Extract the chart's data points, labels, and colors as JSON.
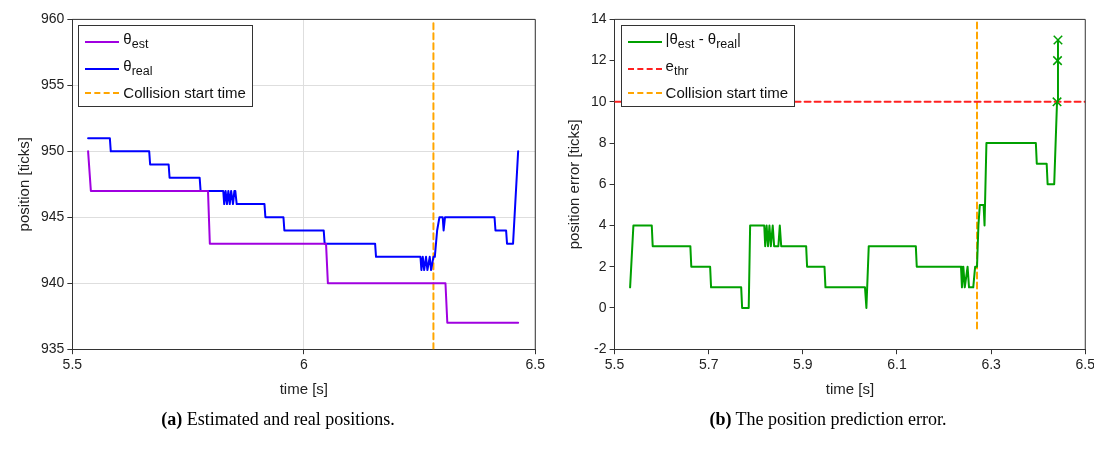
{
  "chart_data": [
    {
      "type": "line",
      "xlabel": "time [s]",
      "ylabel": "position [ticks]",
      "xlim": [
        5.5,
        6.5
      ],
      "xticks": [
        5.5,
        6,
        6.5
      ],
      "ylim": [
        935,
        960
      ],
      "yticks": [
        935,
        940,
        945,
        950,
        955,
        960
      ],
      "grid": true,
      "legend": "top left",
      "annotations": [
        "(a) Estimated and real positions."
      ],
      "series": [
        {
          "name": "θ$_{est}$",
          "color": "#a000e0",
          "x": [
            5.534,
            5.54,
            5.793,
            5.797,
            6.048,
            6.052,
            6.306,
            6.31,
            6.463
          ],
          "values": [
            950,
            947,
            947,
            943,
            943,
            940,
            940,
            937,
            937
          ]
        },
        {
          "name": "θ$_{real}$",
          "color": "#0000ff",
          "x": [
            5.534,
            5.581,
            5.583,
            5.666,
            5.668,
            5.708,
            5.71,
            5.775,
            5.777,
            5.826,
            5.828,
            5.831,
            5.834,
            5.837,
            5.84,
            5.843,
            5.847,
            5.85,
            5.852,
            5.855,
            5.915,
            5.917,
            5.956,
            5.958,
            6.043,
            6.045,
            6.154,
            6.156,
            6.252,
            6.254,
            6.257,
            6.26,
            6.264,
            6.267,
            6.272,
            6.275,
            6.28,
            6.283,
            6.288,
            6.293,
            6.3,
            6.302,
            6.305,
            6.412,
            6.414,
            6.437,
            6.439,
            6.452,
            6.463
          ],
          "values": [
            951,
            951,
            950,
            950,
            949,
            949,
            948,
            948,
            947,
            947,
            946,
            947,
            946,
            947,
            946,
            947,
            946,
            947,
            947,
            946,
            946,
            945,
            945,
            944,
            944,
            943,
            943,
            942,
            942,
            941,
            942,
            941,
            942,
            941,
            942,
            941,
            942,
            942,
            944,
            945,
            945,
            944,
            945,
            945,
            944,
            944,
            943,
            943,
            950
          ]
        },
        {
          "name": "Collision start time",
          "color": "#ffa500",
          "line_style": "dashed",
          "x": [
            6.28,
            6.28
          ],
          "values": [
            935,
            960
          ]
        }
      ]
    },
    {
      "type": "line",
      "xlabel": "time [s]",
      "ylabel": "position error [ticks]",
      "xlim": [
        5.5,
        6.5
      ],
      "xticks": [
        5.5,
        5.7,
        5.9,
        6.1,
        6.3,
        6.5
      ],
      "ylim": [
        -2,
        14
      ],
      "yticks": [
        -2,
        0,
        2,
        4,
        6,
        8,
        10,
        12,
        14
      ],
      "grid": false,
      "legend": "top left",
      "annotations": [
        "(b) The position prediction error."
      ],
      "series": [
        {
          "name": "|θ$_{est}$ - θ$_{real}$|",
          "color": "#00a000",
          "x": [
            5.533,
            5.54,
            5.579,
            5.581,
            5.661,
            5.663,
            5.703,
            5.705,
            5.769,
            5.771,
            5.785,
            5.788,
            5.818,
            5.82,
            5.823,
            5.826,
            5.829,
            5.832,
            5.836,
            5.839,
            5.848,
            5.851,
            5.854,
            5.907,
            5.909,
            5.946,
            5.948,
            6.032,
            6.035,
            6.04,
            6.14,
            6.142,
            6.236,
            6.238,
            6.241,
            6.244,
            6.25,
            6.253,
            6.262,
            6.266,
            6.27,
            6.273,
            6.276,
            6.284,
            6.286,
            6.29,
            6.395,
            6.397,
            6.418,
            6.42,
            6.434,
            6.44,
            6.442
          ],
          "values": [
            1,
            4,
            4,
            3,
            3,
            2,
            2,
            1,
            1,
            0,
            0,
            4,
            4,
            3,
            4,
            3,
            4,
            3,
            4,
            3,
            3,
            4,
            3,
            3,
            2,
            2,
            1,
            1,
            0,
            3,
            3,
            2,
            2,
            1,
            2,
            1,
            2,
            1,
            1,
            2,
            2,
            4,
            5,
            5,
            4,
            8,
            8,
            7,
            7,
            6,
            6,
            10,
            13
          ]
        },
        {
          "name": "e$_{thr}$",
          "color": "#ff2020",
          "line_style": "dashed",
          "x": [
            5.5,
            6.5
          ],
          "values": [
            10,
            10
          ]
        },
        {
          "name": "Collision start time",
          "color": "#ffa500",
          "line_style": "dashed",
          "x": [
            6.27,
            6.27
          ],
          "values": [
            -1,
            14
          ]
        },
        {
          "type": "scatter",
          "marker": "cross",
          "color": "#00a000",
          "x": [
            6.44,
            6.441,
            6.442
          ],
          "values": [
            10,
            12,
            13
          ]
        }
      ]
    }
  ]
}
